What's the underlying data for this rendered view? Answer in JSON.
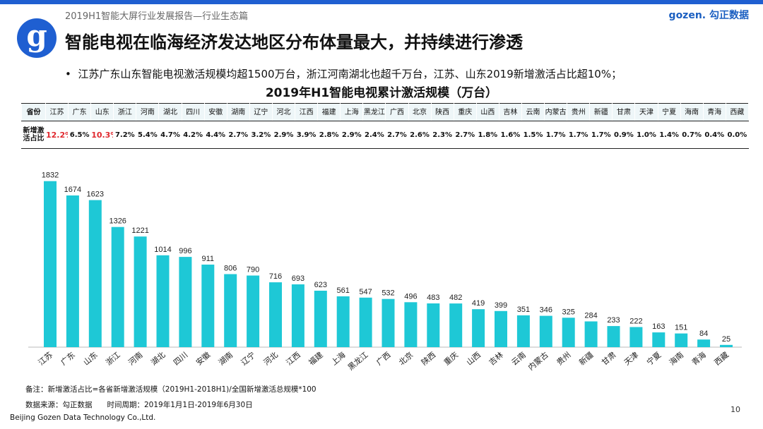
{
  "header": {
    "report_title": "2019H1智能大屏行业发展报告—行业生态篇",
    "logo": "gozen. 勾正数据",
    "logo_letter": "g"
  },
  "title": "智能电视在临海经济发达地区分布体量最大，并持续进行渗透",
  "bullet": "江苏广东山东智能电视激活规模均超1500万台，浙江河南湖北也超千万台，江苏、山东2019新增激活占比超10%；",
  "table": {
    "title": "2019年H1智能电视累计激活规模（万台）",
    "row1_header": "省份",
    "row2_header": "新增激活占比",
    "highlight_color": "#e0282e",
    "shares": [
      "12.2%",
      "6.5%",
      "10.3%",
      "7.2%",
      "5.4%",
      "4.7%",
      "4.2%",
      "4.4%",
      "2.7%",
      "3.2%",
      "2.9%",
      "3.9%",
      "2.8%",
      "2.9%",
      "2.4%",
      "2.7%",
      "2.6%",
      "2.3%",
      "2.7%",
      "1.8%",
      "1.6%",
      "1.5%",
      "1.7%",
      "1.7%",
      "1.7%",
      "0.9%",
      "1.0%",
      "1.4%",
      "0.7%",
      "0.4%",
      "0.0%"
    ]
  },
  "chart_data": {
    "type": "bar",
    "title": "2019年H1智能电视累计激活规模（万台）",
    "categories": [
      "江苏",
      "广东",
      "山东",
      "浙江",
      "河南",
      "湖北",
      "四川",
      "安徽",
      "湖南",
      "辽宁",
      "河北",
      "江西",
      "福建",
      "上海",
      "黑龙江",
      "广西",
      "北京",
      "陕西",
      "重庆",
      "山西",
      "吉林",
      "云南",
      "内蒙古",
      "贵州",
      "新疆",
      "甘肃",
      "天津",
      "宁夏",
      "海南",
      "青海",
      "西藏"
    ],
    "values": [
      1832,
      1674,
      1623,
      1326,
      1221,
      1014,
      996,
      911,
      806,
      790,
      716,
      693,
      623,
      561,
      547,
      532,
      496,
      483,
      482,
      419,
      399,
      351,
      346,
      325,
      284,
      233,
      222,
      163,
      151,
      84,
      25
    ],
    "ylim": [
      0,
      1900
    ],
    "bar_color": "#1ec8d6",
    "grid": false
  },
  "footer": {
    "note": "备注：新增激活占比=各省新增激活规模（2019H1-2018H1)/全国新增激活总规模*100",
    "source": "数据来源：勾正数据　　时间周期：2019年1月1日-2019年6月30日",
    "page": "10",
    "company": "Beijing Gozen Data Technology Co.,Ltd."
  },
  "colors": {
    "accent": "#1f5fd1",
    "bar": "#1ec8d6"
  }
}
